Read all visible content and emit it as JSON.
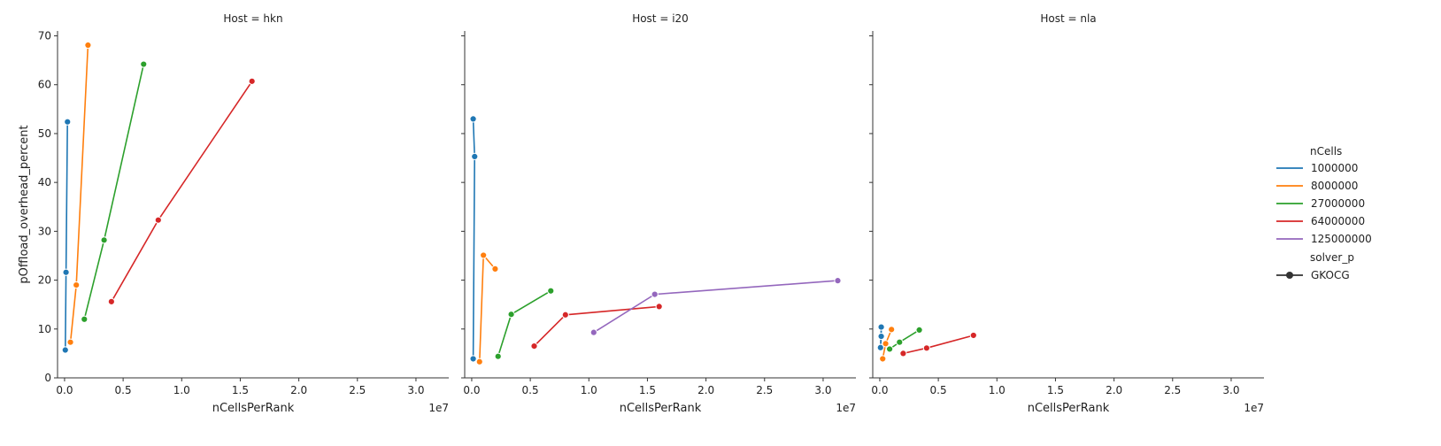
{
  "chart_data": {
    "type": "line",
    "facet_variable": "Host",
    "panels": [
      {
        "title": "Host = hkn",
        "xlabel": "nCellsPerRank",
        "ylabel": "pOffload_overhead_percent",
        "x_offset_text": "1e7",
        "series": [
          {
            "name": "1000000",
            "x": [
              62500,
              125000,
              250000,
              62500
            ],
            "y": [
              5.7,
              21.6,
              52.4,
              5.7
            ]
          },
          {
            "name": "8000000",
            "x": [
              500000,
              1000000,
              2000000
            ],
            "y": [
              7.3,
              19.0,
              68.1
            ]
          },
          {
            "name": "27000000",
            "x": [
              1687500,
              3375000,
              6750000
            ],
            "y": [
              12.0,
              28.2,
              64.2
            ]
          },
          {
            "name": "64000000",
            "x": [
              4000000,
              8000000,
              16000000
            ],
            "y": [
              15.6,
              32.3,
              60.7
            ]
          }
        ]
      },
      {
        "title": "Host = i20",
        "xlabel": "nCellsPerRank",
        "ylabel": "",
        "x_offset_text": "1e7",
        "series": [
          {
            "name": "1000000",
            "x": [
              125000,
              250000,
              125000
            ],
            "y": [
              53.0,
              45.3,
              3.9
            ]
          },
          {
            "name": "8000000",
            "x": [
              666667,
              1000000,
              2000000
            ],
            "y": [
              3.3,
              25.1,
              22.3
            ]
          },
          {
            "name": "27000000",
            "x": [
              2250000,
              3375000,
              6750000
            ],
            "y": [
              4.4,
              13.0,
              17.8
            ]
          },
          {
            "name": "64000000",
            "x": [
              5333333,
              8000000,
              16000000
            ],
            "y": [
              6.5,
              12.9,
              14.6
            ]
          },
          {
            "name": "125000000",
            "x": [
              10416667,
              15625000,
              31250000
            ],
            "y": [
              9.3,
              17.1,
              19.9
            ]
          }
        ]
      },
      {
        "title": "Host = nla",
        "xlabel": "nCellsPerRank",
        "ylabel": "",
        "x_offset_text": "1e7",
        "series": [
          {
            "name": "1000000",
            "x": [
              62500,
              125000,
              125000,
              62500
            ],
            "y": [
              6.2,
              8.5,
              10.4,
              6.2
            ]
          },
          {
            "name": "8000000",
            "x": [
              250000,
              500000,
              1000000
            ],
            "y": [
              3.9,
              7.0,
              9.9
            ]
          },
          {
            "name": "27000000",
            "x": [
              843750,
              1687500,
              3375000
            ],
            "y": [
              5.9,
              7.3,
              9.8
            ]
          },
          {
            "name": "64000000",
            "x": [
              2000000,
              4000000,
              8000000
            ],
            "y": [
              5.0,
              6.1,
              8.7
            ]
          }
        ]
      }
    ],
    "xlim": [
      -600000,
      32800000
    ],
    "ylim": [
      0,
      71
    ],
    "xticks": [
      0,
      5000000,
      10000000,
      15000000,
      20000000,
      25000000,
      30000000
    ],
    "xtick_labels": [
      "0.0",
      "0.5",
      "1.0",
      "1.5",
      "2.0",
      "2.5",
      "3.0"
    ],
    "yticks": [
      0,
      10,
      20,
      30,
      40,
      50,
      60,
      70
    ],
    "ytick_labels": [
      "0",
      "10",
      "20",
      "30",
      "40",
      "50",
      "60",
      "70"
    ],
    "grid": false,
    "legend": {
      "placement": "right",
      "hue_title": "nCells",
      "entries": [
        {
          "label": "1000000",
          "color": "#1f77b4"
        },
        {
          "label": "8000000",
          "color": "#ff7f0e"
        },
        {
          "label": "27000000",
          "color": "#2ca02c"
        },
        {
          "label": "64000000",
          "color": "#d62728"
        },
        {
          "label": "125000000",
          "color": "#9467bd"
        }
      ],
      "style_title": "solver_p",
      "style_entries": [
        {
          "label": "GKOCG",
          "color": "#333333"
        }
      ]
    }
  }
}
